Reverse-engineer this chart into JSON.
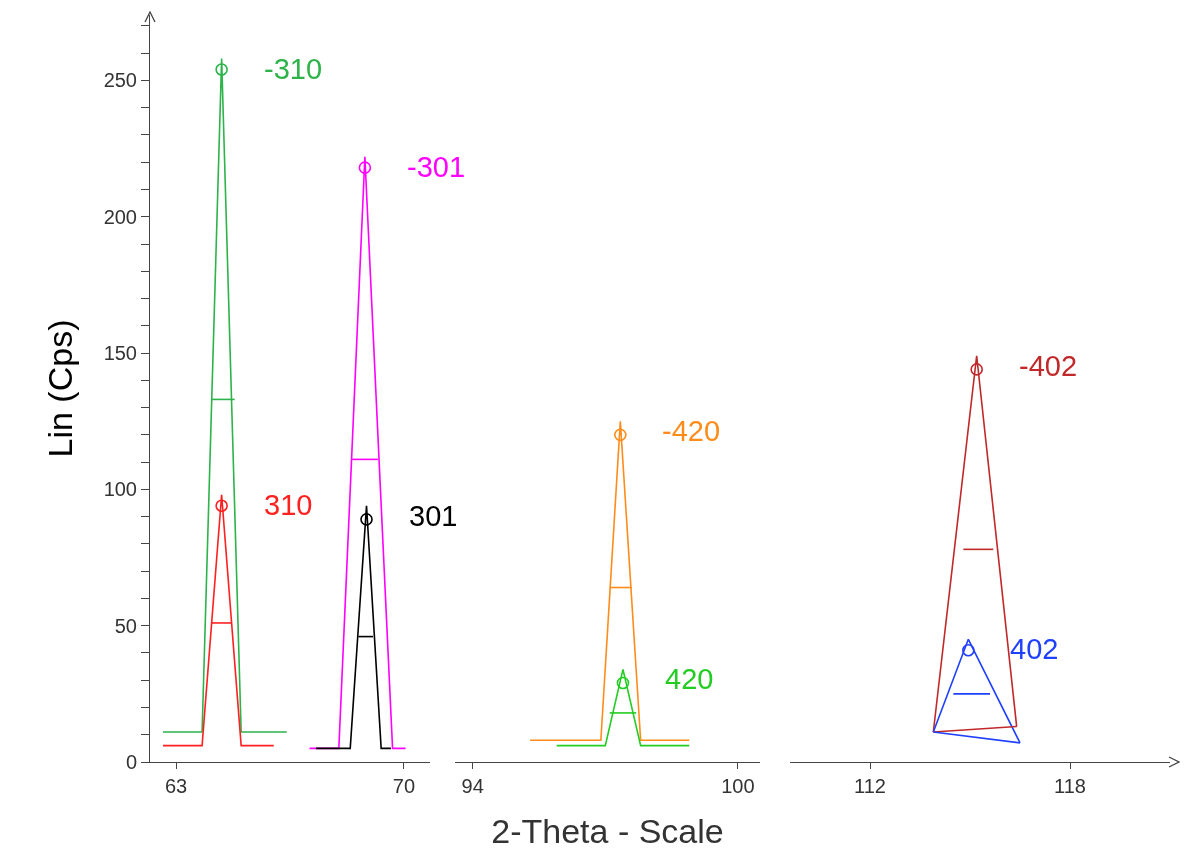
{
  "chart_data": [
    {
      "type": "line",
      "ylabel": "Lin (Cps)",
      "xlim": [
        62.2,
        70.8
      ],
      "xticks": [
        63,
        70
      ],
      "ylim": [
        0,
        274
      ],
      "yticks": [
        0,
        {
          "value": 10,
          "label": null
        },
        {
          "value": 20,
          "label": null
        },
        {
          "value": 30,
          "label": null
        },
        {
          "value": 40,
          "label": null
        },
        50,
        {
          "value": 60,
          "label": null
        },
        {
          "value": 70,
          "label": null
        },
        {
          "value": 80,
          "label": null
        },
        {
          "value": 90,
          "label": null
        },
        100,
        {
          "value": 110,
          "label": null
        },
        {
          "value": 120,
          "label": null
        },
        {
          "value": 130,
          "label": null
        },
        {
          "value": 140,
          "label": null
        },
        150,
        {
          "value": 160,
          "label": null
        },
        {
          "value": 170,
          "label": null
        },
        {
          "value": 180,
          "label": null
        },
        {
          "value": 190,
          "label": null
        },
        200,
        {
          "value": 210,
          "label": null
        },
        {
          "value": 220,
          "label": null
        },
        {
          "value": 230,
          "label": null
        },
        {
          "value": 240,
          "label": null
        },
        250,
        {
          "value": 260,
          "label": null
        },
        {
          "value": 270,
          "label": null
        }
      ],
      "grid": false,
      "series": [
        {
          "type": "line",
          "name": "-310",
          "color": "#2db34a",
          "x": [
            62.6,
            63.8,
            64.4,
            65.0,
            66.4
          ],
          "values": [
            11,
            11,
            258,
            11,
            11
          ]
        },
        {
          "type": "line",
          "name": "310",
          "color": "#ff2020",
          "x": [
            62.6,
            63.8,
            64.4,
            65.0,
            66.0
          ],
          "values": [
            6,
            6,
            98,
            6,
            6
          ]
        },
        {
          "type": "line",
          "name": "-301",
          "color": "#ff00ff",
          "x": [
            67.1,
            68.0,
            68.8,
            69.65,
            70.05
          ],
          "values": [
            5,
            5,
            222,
            5,
            5
          ]
        },
        {
          "type": "line",
          "name": "301",
          "color": "#000000",
          "x": [
            67.3,
            68.35,
            68.85,
            69.3,
            69.6
          ],
          "values": [
            5,
            5,
            94,
            5,
            5
          ]
        },
        {
          "type": "line",
          "color": "#2db34a",
          "x": [
            64.1,
            64.8
          ],
          "values": [
            133,
            133
          ]
        },
        {
          "type": "line",
          "color": "#ff2020",
          "x": [
            64.1,
            64.7
          ],
          "values": [
            51,
            51
          ]
        },
        {
          "type": "line",
          "color": "#ff00ff",
          "x": [
            68.4,
            69.2
          ],
          "values": [
            111,
            111
          ]
        },
        {
          "type": "line",
          "color": "#000000",
          "x": [
            68.6,
            69.05
          ],
          "values": [
            46,
            46
          ]
        },
        {
          "type": "scatter",
          "marker": "circle",
          "x": [
            64.4,
            64.4,
            68.8,
            68.85
          ],
          "values": [
            254,
            94,
            218,
            89
          ],
          "colors": [
            "#2db34a",
            "#ff2020",
            "#ff00ff",
            "#000000"
          ]
        }
      ]
    },
    {
      "type": "line",
      "xlabel": "2-Theta - Scale",
      "xlim": [
        93.6,
        100.5
      ],
      "xticks": [
        94,
        100
      ],
      "yticks": [
        0,
        50,
        100,
        150,
        200,
        250
      ],
      "tick_labels": "x",
      "grid": false,
      "series": [
        {
          "type": "line",
          "name": "-420",
          "color": "#ff8c1a",
          "x": [
            95.3,
            96.9,
            97.34,
            97.8,
            98.9
          ],
          "values": [
            8,
            8,
            125,
            8,
            8
          ]
        },
        {
          "type": "line",
          "name": "420",
          "color": "#22cc22",
          "x": [
            95.9,
            97.0,
            97.4,
            97.8,
            98.9
          ],
          "values": [
            6,
            6,
            34,
            6,
            6
          ]
        },
        {
          "type": "line",
          "color": "#ff8c1a",
          "x": [
            97.1,
            97.6
          ],
          "values": [
            64,
            64
          ]
        },
        {
          "type": "line",
          "color": "#22cc22",
          "x": [
            97.1,
            97.7
          ],
          "values": [
            18,
            18
          ]
        },
        {
          "type": "scatter",
          "marker": "circle",
          "x": [
            97.34,
            97.4
          ],
          "values": [
            120,
            29
          ],
          "colors": [
            "#ff8c1a",
            "#22cc22"
          ]
        }
      ]
    },
    {
      "type": "line",
      "xlim": [
        109.6,
        121
      ],
      "xticks": [
        112,
        118
      ],
      "yticks": [
        0,
        50,
        100,
        150,
        200,
        250
      ],
      "tick_labels": "x",
      "grid": false,
      "series": [
        {
          "type": "line",
          "name": "-402",
          "color": "#c0282a",
          "x": [
            113.9,
            115.2,
            116.4
          ],
          "values": [
            11,
            149,
            13
          ]
        },
        {
          "type": "line",
          "name": "402",
          "color": "#2040ff",
          "x": [
            113.9,
            114.95,
            116.5
          ],
          "values": [
            11,
            45,
            7
          ]
        },
        {
          "type": "line",
          "color": "#c0282a",
          "x": [
            113.9,
            116.4
          ],
          "values": [
            11,
            13
          ]
        },
        {
          "type": "line",
          "color": "#2040ff",
          "x": [
            113.9,
            116.5
          ],
          "values": [
            11,
            7
          ]
        },
        {
          "type": "line",
          "color": "#c0282a",
          "x": [
            114.8,
            115.7
          ],
          "values": [
            78,
            78
          ]
        },
        {
          "type": "line",
          "color": "#2040ff",
          "x": [
            114.5,
            115.6
          ],
          "values": [
            25,
            25
          ]
        },
        {
          "type": "scatter",
          "marker": "circle",
          "x": [
            115.2,
            114.95
          ],
          "values": [
            144,
            41
          ],
          "colors": [
            "#c0282a",
            "#2040ff"
          ]
        }
      ]
    }
  ]
}
